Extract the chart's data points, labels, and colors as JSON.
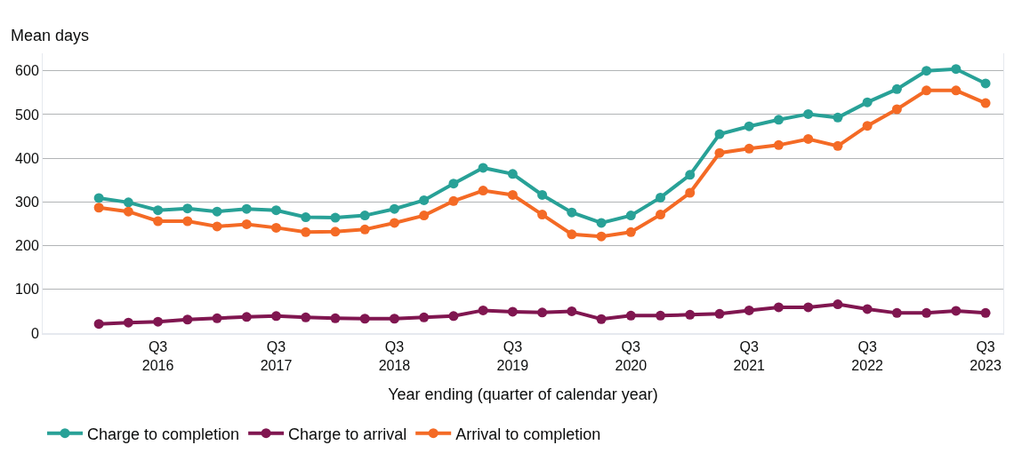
{
  "chart_data": {
    "type": "line",
    "xlabel": "Year ending (quarter of calendar year)",
    "ylabel": "Mean days",
    "categories": [
      null,
      null,
      "Q3\n2016",
      null,
      null,
      null,
      "Q3\n2017",
      null,
      null,
      null,
      "Q3\n2018",
      null,
      null,
      null,
      "Q3\n2019",
      null,
      null,
      null,
      "Q3\n2020",
      null,
      null,
      null,
      "Q3\n2021",
      null,
      null,
      null,
      "Q3\n2022",
      null,
      null,
      null,
      "Q3\n2023"
    ],
    "series": [
      {
        "name": "Charge to completion",
        "color": "#28a197",
        "values": [
          309,
          299,
          281,
          285,
          278,
          284,
          281,
          265,
          264,
          269,
          284,
          304,
          342,
          378,
          364,
          316,
          276,
          252,
          269,
          310,
          362,
          455,
          473,
          488,
          501,
          493,
          528,
          558,
          600,
          604,
          571
        ]
      },
      {
        "name": "Charge to arrival",
        "color": "#801650",
        "values": [
          21,
          24,
          26,
          31,
          34,
          37,
          39,
          36,
          34,
          33,
          33,
          36,
          39,
          52,
          49,
          47,
          50,
          32,
          40,
          40,
          42,
          44,
          52,
          59,
          59,
          66,
          55,
          46,
          46,
          51,
          46
        ]
      },
      {
        "name": "Arrival to completion",
        "color": "#f46a25",
        "values": [
          287,
          278,
          256,
          256,
          244,
          249,
          241,
          231,
          232,
          237,
          252,
          269,
          302,
          326,
          316,
          271,
          226,
          221,
          231,
          271,
          321,
          412,
          422,
          430,
          444,
          428,
          474,
          512,
          555,
          555,
          526
        ]
      }
    ],
    "ylim": [
      0,
      640
    ],
    "yticks": [
      0,
      100,
      200,
      300,
      400,
      500,
      600
    ],
    "grid": "y",
    "legend": "bottom",
    "marker": "circle",
    "line_style": "solid"
  }
}
